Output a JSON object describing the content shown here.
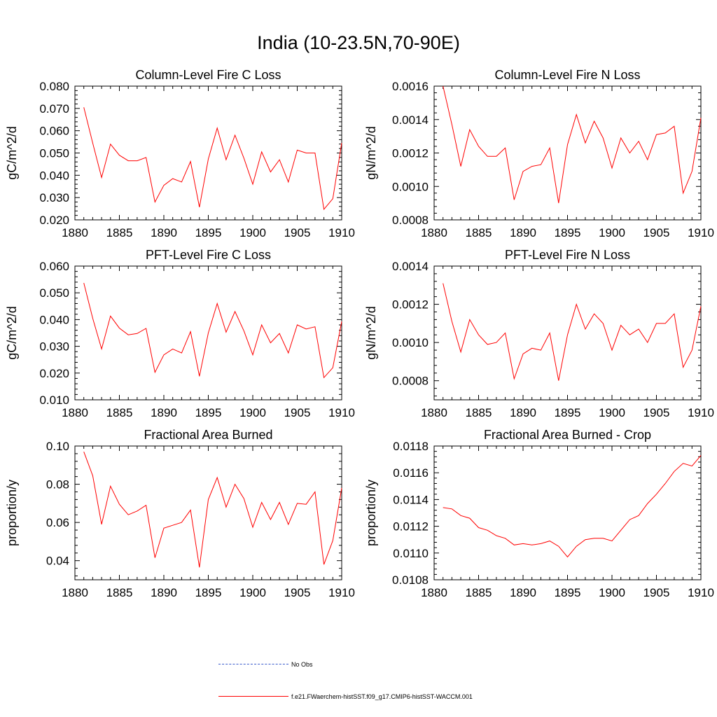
{
  "figure": {
    "title": "India (10-23.5N,70-90E)",
    "legend": [
      {
        "label": "No Obs",
        "style": "dashed",
        "color": "#3b5ccc"
      },
      {
        "label": "f.e21.FWaerchem-histSST.f09_g17.CMIP6-histSST-WACCM.001",
        "style": "solid",
        "color": "#ff0000"
      }
    ]
  },
  "chart_data": [
    {
      "type": "line",
      "title": "Column-Level Fire C Loss",
      "ylabel": "gC/m^2/d",
      "xlim": [
        1880,
        1910
      ],
      "ylim": [
        0.02,
        0.08
      ],
      "xticks": [
        1880,
        1885,
        1890,
        1895,
        1900,
        1905,
        1910
      ],
      "yticks": [
        0.02,
        0.03,
        0.04,
        0.05,
        0.06,
        0.07,
        0.08
      ],
      "ytick_labels": [
        "0.020",
        "0.030",
        "0.040",
        "0.050",
        "0.060",
        "0.070",
        "0.080"
      ],
      "series": [
        {
          "color": "#ff0000",
          "x": [
            1881,
            1882,
            1883,
            1884,
            1885,
            1886,
            1887,
            1888,
            1889,
            1890,
            1891,
            1892,
            1893,
            1894,
            1895,
            1896,
            1897,
            1898,
            1899,
            1900,
            1901,
            1902,
            1903,
            1904,
            1905,
            1906,
            1907,
            1908,
            1909,
            1910
          ],
          "values": [
            0.0705,
            0.0545,
            0.039,
            0.054,
            0.049,
            0.0465,
            0.0465,
            0.048,
            0.028,
            0.0355,
            0.0385,
            0.037,
            0.0462,
            0.0257,
            0.0473,
            0.0612,
            0.047,
            0.058,
            0.0477,
            0.036,
            0.0505,
            0.0415,
            0.047,
            0.037,
            0.0513,
            0.05,
            0.05,
            0.0247,
            0.0295,
            0.0545
          ]
        }
      ]
    },
    {
      "type": "line",
      "title": "Column-Level Fire N Loss",
      "ylabel": "gN/m^2/d",
      "xlim": [
        1880,
        1910
      ],
      "ylim": [
        0.0008,
        0.0016
      ],
      "xticks": [
        1880,
        1885,
        1890,
        1895,
        1900,
        1905,
        1910
      ],
      "yticks": [
        0.0008,
        0.001,
        0.0012,
        0.0014,
        0.0016
      ],
      "ytick_labels": [
        "0.0008",
        "0.0010",
        "0.0012",
        "0.0014",
        "0.0016"
      ],
      "series": [
        {
          "color": "#ff0000",
          "x": [
            1881,
            1882,
            1883,
            1884,
            1885,
            1886,
            1887,
            1888,
            1889,
            1890,
            1891,
            1892,
            1893,
            1894,
            1895,
            1896,
            1897,
            1898,
            1899,
            1900,
            1901,
            1902,
            1903,
            1904,
            1905,
            1906,
            1907,
            1908,
            1909,
            1910
          ],
          "values": [
            0.0016,
            0.00137,
            0.00112,
            0.00134,
            0.00124,
            0.00118,
            0.00118,
            0.00123,
            0.00092,
            0.00109,
            0.00112,
            0.00113,
            0.00123,
            0.0009,
            0.00125,
            0.00143,
            0.00126,
            0.00139,
            0.00129,
            0.00111,
            0.00129,
            0.0012,
            0.00127,
            0.00116,
            0.00131,
            0.00132,
            0.00136,
            0.00096,
            0.00109,
            0.00141
          ]
        }
      ]
    },
    {
      "type": "line",
      "title": "PFT-Level Fire C Loss",
      "ylabel": "gC/m^2/d",
      "xlim": [
        1880,
        1910
      ],
      "ylim": [
        0.01,
        0.06
      ],
      "xticks": [
        1880,
        1885,
        1890,
        1895,
        1900,
        1905,
        1910
      ],
      "yticks": [
        0.01,
        0.02,
        0.03,
        0.04,
        0.05,
        0.06
      ],
      "ytick_labels": [
        "0.010",
        "0.020",
        "0.030",
        "0.040",
        "0.050",
        "0.060"
      ],
      "series": [
        {
          "color": "#ff0000",
          "x": [
            1881,
            1882,
            1883,
            1884,
            1885,
            1886,
            1887,
            1888,
            1889,
            1890,
            1891,
            1892,
            1893,
            1894,
            1895,
            1896,
            1897,
            1898,
            1899,
            1900,
            1901,
            1902,
            1903,
            1904,
            1905,
            1906,
            1907,
            1908,
            1909,
            1910
          ],
          "values": [
            0.0537,
            0.0405,
            0.029,
            0.0413,
            0.0368,
            0.0343,
            0.0348,
            0.0367,
            0.0203,
            0.0268,
            0.029,
            0.0275,
            0.0355,
            0.0188,
            0.035,
            0.046,
            0.0353,
            0.043,
            0.0358,
            0.0268,
            0.038,
            0.0313,
            0.0348,
            0.0275,
            0.038,
            0.0365,
            0.0373,
            0.0183,
            0.022,
            0.0393
          ]
        }
      ]
    },
    {
      "type": "line",
      "title": "PFT-Level Fire N Loss",
      "ylabel": "gN/m^2/d",
      "xlim": [
        1880,
        1910
      ],
      "ylim": [
        0.0007,
        0.0014
      ],
      "xticks": [
        1880,
        1885,
        1890,
        1895,
        1900,
        1905,
        1910
      ],
      "yticks": [
        0.0008,
        0.001,
        0.0012,
        0.0014
      ],
      "ytick_labels": [
        "0.0008",
        "0.0010",
        "0.0012",
        "0.0014"
      ],
      "series": [
        {
          "color": "#ff0000",
          "x": [
            1881,
            1882,
            1883,
            1884,
            1885,
            1886,
            1887,
            1888,
            1889,
            1890,
            1891,
            1892,
            1893,
            1894,
            1895,
            1896,
            1897,
            1898,
            1899,
            1900,
            1901,
            1902,
            1903,
            1904,
            1905,
            1906,
            1907,
            1908,
            1909,
            1910
          ],
          "values": [
            0.00131,
            0.00111,
            0.00095,
            0.00112,
            0.00104,
            0.00099,
            0.001,
            0.00105,
            0.00081,
            0.00094,
            0.00097,
            0.00096,
            0.00105,
            0.0008,
            0.00104,
            0.0012,
            0.00107,
            0.00115,
            0.0011,
            0.00096,
            0.00109,
            0.00104,
            0.00107,
            0.001,
            0.0011,
            0.0011,
            0.00115,
            0.00087,
            0.00096,
            0.00119
          ]
        }
      ]
    },
    {
      "type": "line",
      "title": "Fractional Area Burned",
      "ylabel": "proportion/y",
      "xlim": [
        1880,
        1910
      ],
      "ylim": [
        0.03,
        0.1
      ],
      "xticks": [
        1880,
        1885,
        1890,
        1895,
        1900,
        1905,
        1910
      ],
      "yticks": [
        0.04,
        0.06,
        0.08,
        0.1
      ],
      "ytick_labels": [
        "0.04",
        "0.06",
        "0.08",
        "0.10"
      ],
      "series": [
        {
          "color": "#ff0000",
          "x": [
            1881,
            1882,
            1883,
            1884,
            1885,
            1886,
            1887,
            1888,
            1889,
            1890,
            1891,
            1892,
            1893,
            1894,
            1895,
            1896,
            1897,
            1898,
            1899,
            1900,
            1901,
            1902,
            1903,
            1904,
            1905,
            1906,
            1907,
            1908,
            1909,
            1910
          ],
          "values": [
            0.097,
            0.0845,
            0.059,
            0.079,
            0.0695,
            0.064,
            0.066,
            0.069,
            0.0415,
            0.057,
            0.0585,
            0.06,
            0.0665,
            0.0365,
            0.072,
            0.0835,
            0.068,
            0.08,
            0.0725,
            0.0575,
            0.0705,
            0.0615,
            0.0705,
            0.059,
            0.07,
            0.0695,
            0.076,
            0.038,
            0.0505,
            0.078
          ]
        }
      ]
    },
    {
      "type": "line",
      "title": "Fractional Area Burned - Crop",
      "ylabel": "proportion/y",
      "xlim": [
        1880,
        1910
      ],
      "ylim": [
        0.0108,
        0.0118
      ],
      "xticks": [
        1880,
        1885,
        1890,
        1895,
        1900,
        1905,
        1910
      ],
      "yticks": [
        0.0108,
        0.011,
        0.0112,
        0.0114,
        0.0116,
        0.0118
      ],
      "ytick_labels": [
        "0.0108",
        "0.0110",
        "0.0112",
        "0.0114",
        "0.0116",
        "0.0118"
      ],
      "series": [
        {
          "color": "#ff0000",
          "x": [
            1881,
            1882,
            1883,
            1884,
            1885,
            1886,
            1887,
            1888,
            1889,
            1890,
            1891,
            1892,
            1893,
            1894,
            1895,
            1896,
            1897,
            1898,
            1899,
            1900,
            1901,
            1902,
            1903,
            1904,
            1905,
            1906,
            1907,
            1908,
            1909,
            1910
          ],
          "values": [
            0.01134,
            0.01133,
            0.01128,
            0.01126,
            0.01119,
            0.01117,
            0.01113,
            0.01111,
            0.01106,
            0.01107,
            0.01106,
            0.01107,
            0.01109,
            0.01105,
            0.01097,
            0.01105,
            0.0111,
            0.01111,
            0.01111,
            0.01109,
            0.01117,
            0.01125,
            0.01128,
            0.01137,
            0.01144,
            0.01152,
            0.01161,
            0.01167,
            0.01165,
            0.01173
          ]
        }
      ]
    }
  ]
}
